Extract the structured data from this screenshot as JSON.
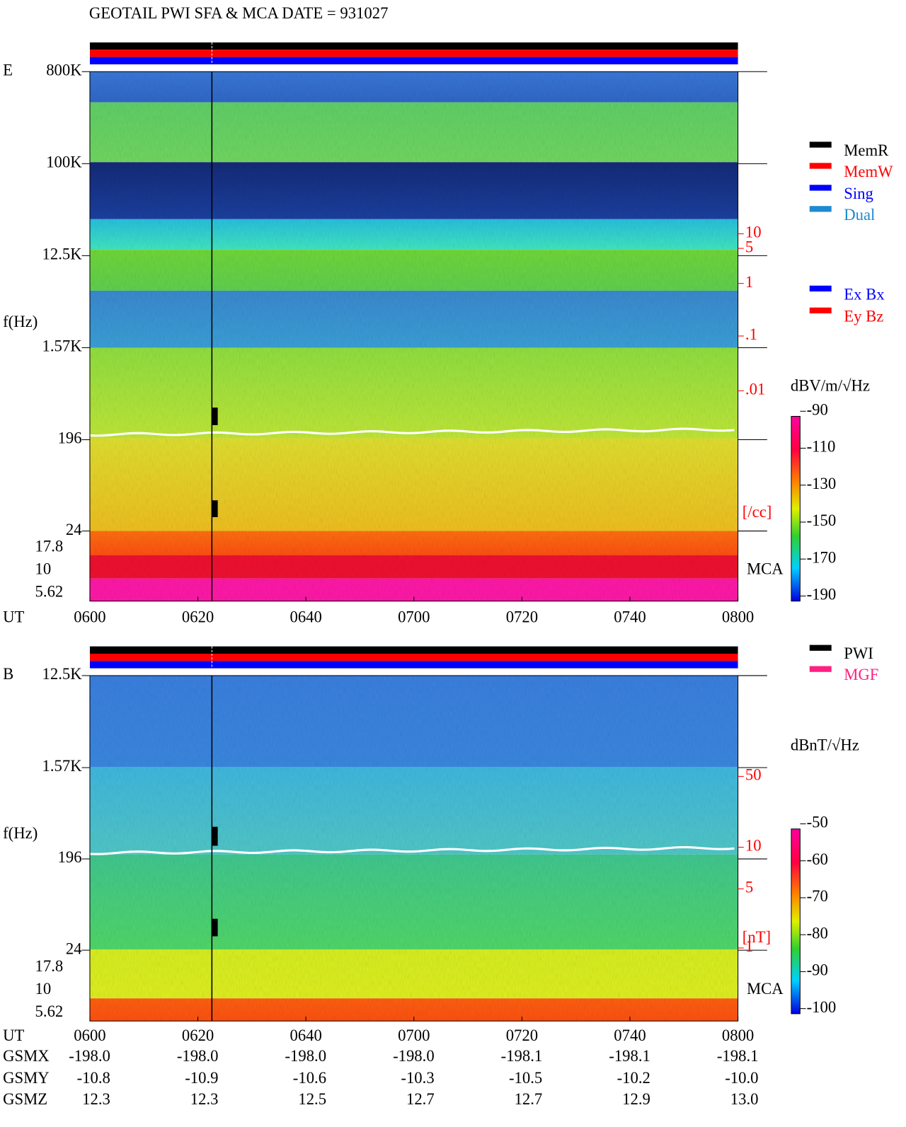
{
  "header": {
    "title": "GEOTAIL  PWI SFA & MCA   DATE = 931027"
  },
  "panels": [
    {
      "label": "E",
      "y_label": "f(Hz)",
      "freq_ticks": [
        "800K",
        "100K",
        "12.5K",
        "1.57K",
        "196",
        "24"
      ],
      "mca_ticks": [
        "17.8",
        "10",
        "5.62"
      ],
      "time_label": "UT",
      "time_ticks": [
        "0600",
        "0620",
        "0640",
        "0700",
        "0720",
        "0740",
        "0800"
      ],
      "density_ticks": [
        "10",
        "5",
        "1",
        ".1",
        ".01"
      ],
      "density_unit": "[/cc]",
      "mca_label": "MCA",
      "colorbar_unit": "dBV/m/√Hz",
      "colorbar_ticks": [
        "-90",
        "-110",
        "-130",
        "-150",
        "-170",
        "-190"
      ]
    },
    {
      "label": "B",
      "y_label": "f(Hz)",
      "freq_ticks": [
        "12.5K",
        "1.57K",
        "196",
        "24"
      ],
      "mca_ticks": [
        "17.8",
        "10",
        "5.62"
      ],
      "time_label": "UT",
      "time_ticks": [
        "0600",
        "0620",
        "0640",
        "0700",
        "0720",
        "0740",
        "0800"
      ],
      "density_ticks": [
        "50",
        "10",
        "5",
        "1"
      ],
      "density_unit": "[nT]",
      "mca_label": "MCA",
      "colorbar_unit": "dBnT/√Hz",
      "colorbar_ticks": [
        "-50",
        "-60",
        "-70",
        "-80",
        "-90",
        "-100"
      ]
    }
  ],
  "legend_mode": [
    {
      "name": "MemR",
      "color": "#000000"
    },
    {
      "name": "MemW",
      "color": "#ff0000"
    },
    {
      "name": "Sing",
      "color": "#0000ff"
    },
    {
      "name": "Dual",
      "color": "#1e8ad0"
    }
  ],
  "legend_antenna": [
    {
      "name": "Ex Bx",
      "color": "#0000ff"
    },
    {
      "name": "Ey Bz",
      "color": "#ff0000"
    }
  ],
  "legend_source": [
    {
      "name": "PWI",
      "color": "#000000"
    },
    {
      "name": "MGF",
      "color": "#ff2080"
    }
  ],
  "orbit": {
    "rows": [
      {
        "name": "GSMX",
        "values": [
          "-198.0",
          "-198.0",
          "-198.0",
          "-198.0",
          "-198.1",
          "-198.1",
          "-198.1"
        ]
      },
      {
        "name": "GSMY",
        "values": [
          "-10.8",
          "-10.9",
          "-10.6",
          "-10.3",
          "-10.5",
          "-10.2",
          "-10.0"
        ]
      },
      {
        "name": "GSMZ",
        "values": [
          "12.3",
          "12.3",
          "12.5",
          "12.7",
          "12.7",
          "12.9",
          "13.0"
        ]
      }
    ]
  }
}
